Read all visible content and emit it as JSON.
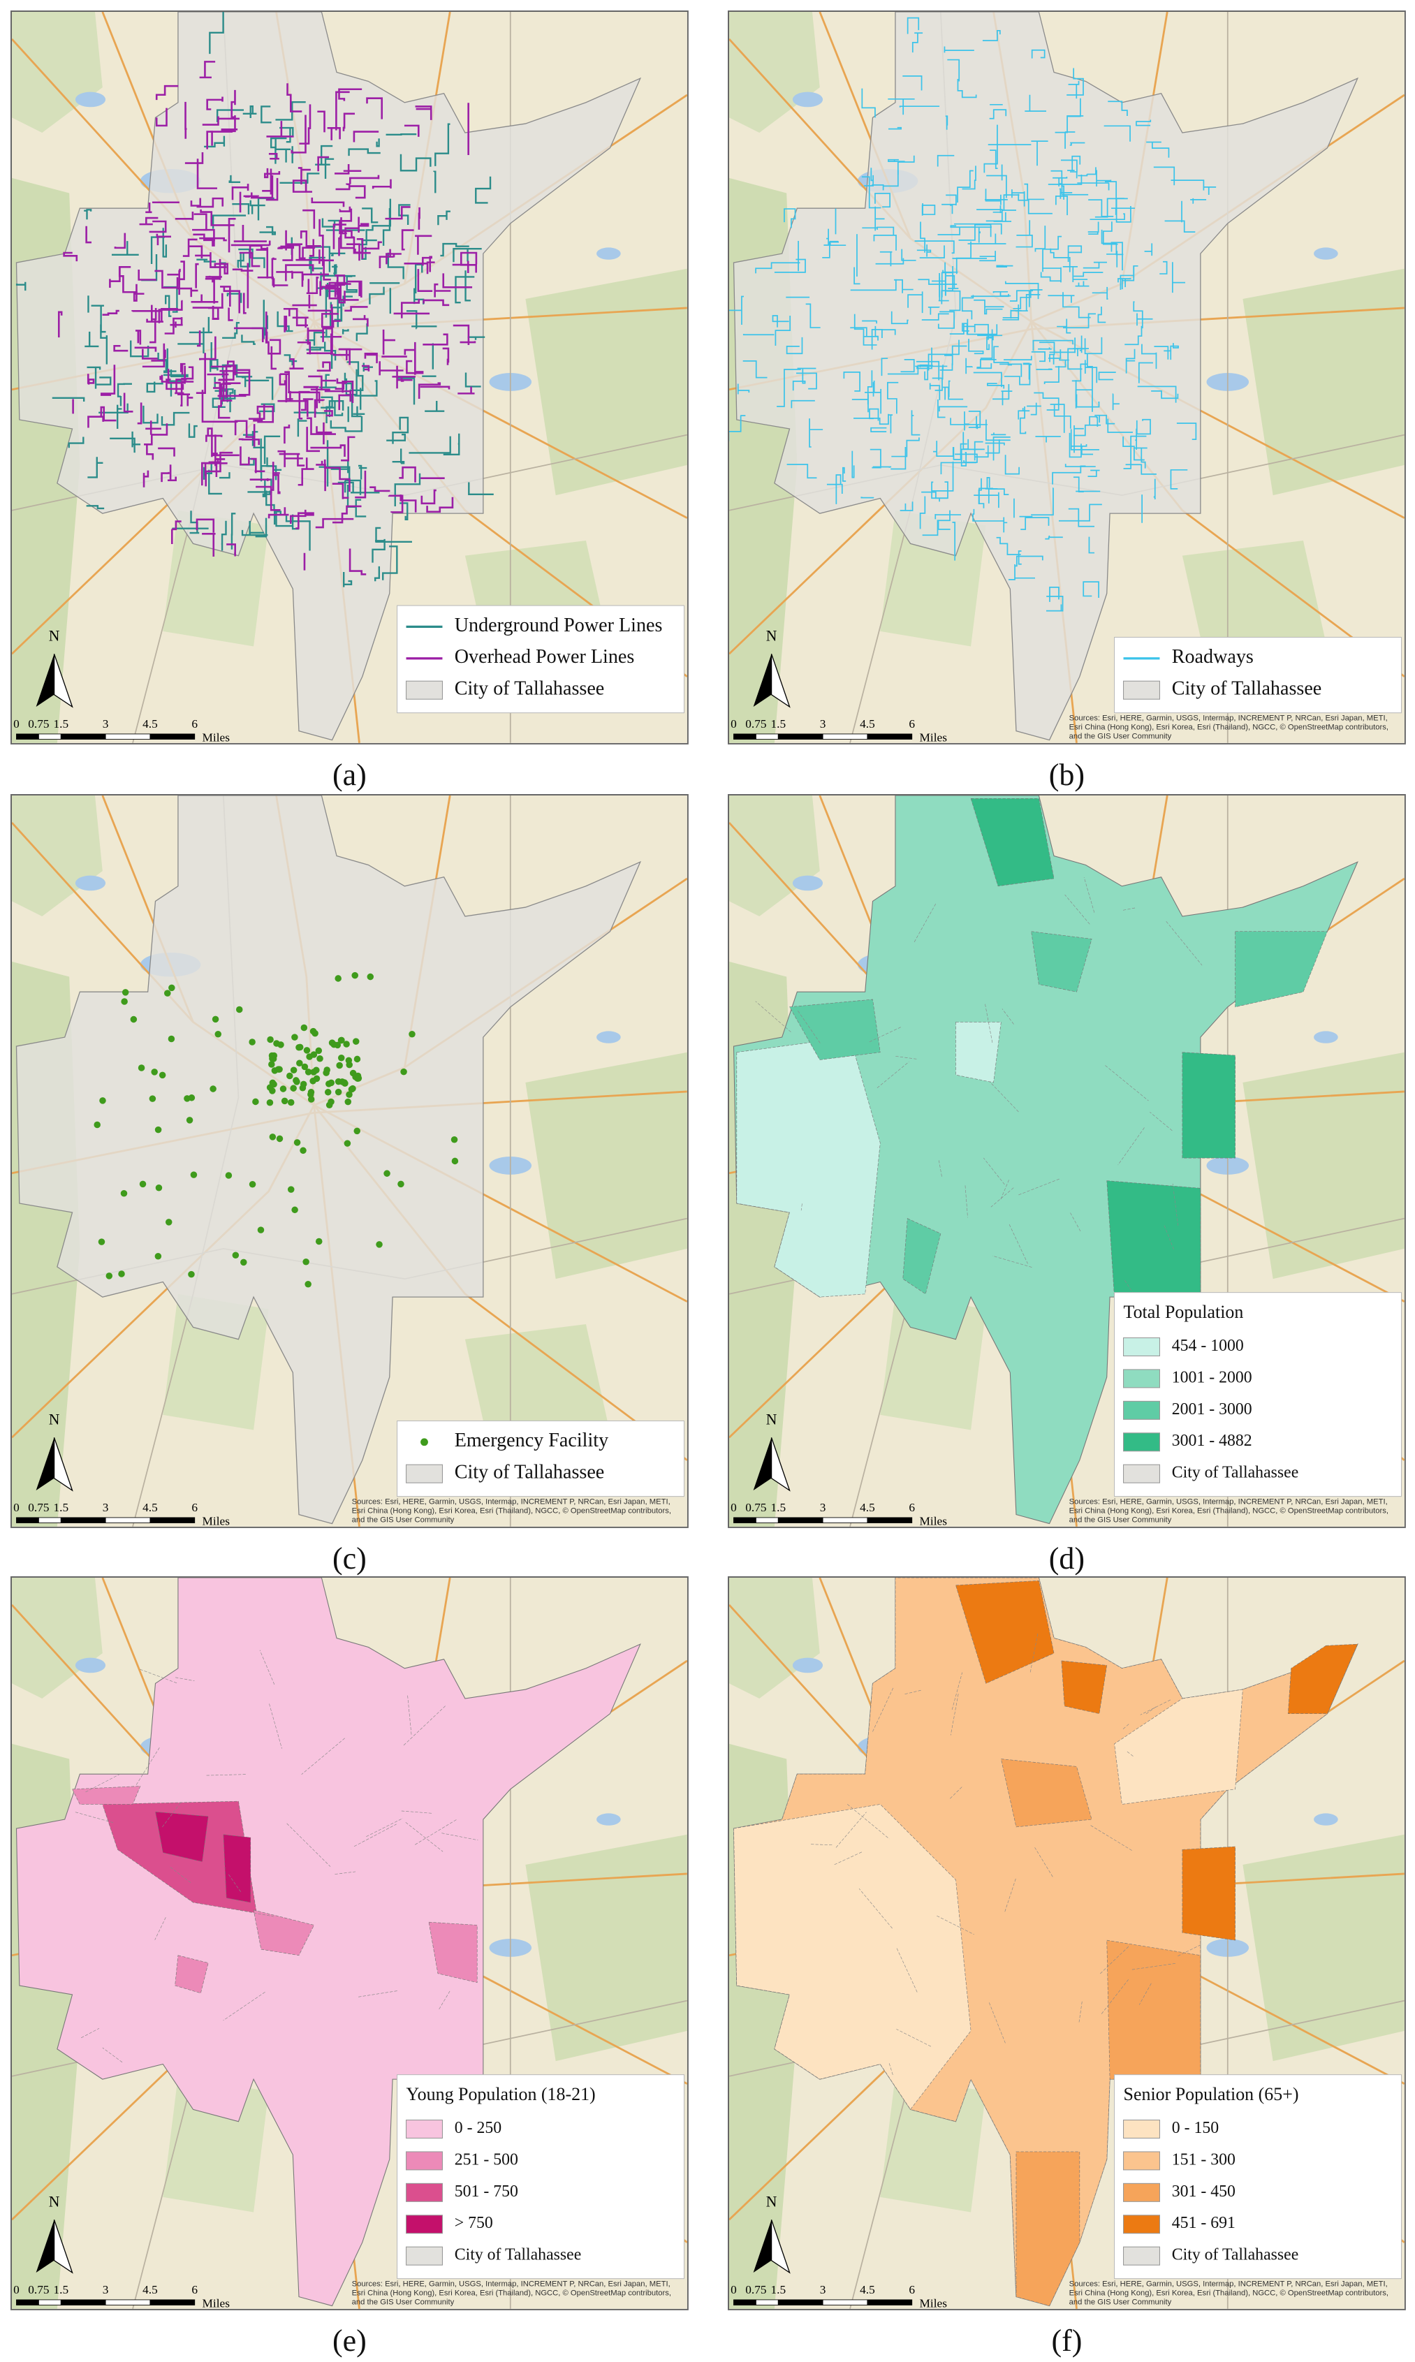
{
  "north": "N",
  "scale_bar": {
    "ticks": [
      0,
      0.75,
      1.5,
      3,
      4.5,
      6
    ],
    "unit": "Miles"
  },
  "attribution": "Sources: Esri, HERE, Garmin, USGS, Intermap, INCREMENT P, NRCan, Esri Japan, METI, Esri China (Hong Kong), Esri Korea, Esri (Thailand), NGCC, © OpenStreetMap contributors, and the GIS User Community",
  "panels": [
    {
      "label": "(a)",
      "map": "power-lines",
      "attribution": false,
      "legend": {
        "items": [
          {
            "label": "Underground Power Lines",
            "symbol": "line",
            "color": "#2b8c8a"
          },
          {
            "label": "Overhead Power Lines",
            "symbol": "line",
            "color": "#9c1fa6"
          },
          {
            "label": "City of Tallahassee",
            "symbol": "box",
            "color": "#e2e1dd"
          }
        ]
      }
    },
    {
      "label": "(b)",
      "map": "roads",
      "attribution": true,
      "legend": {
        "items": [
          {
            "label": "Roadways",
            "symbol": "line",
            "color": "#3cc3ea"
          },
          {
            "label": "City of Tallahassee",
            "symbol": "box",
            "color": "#e2e1dd"
          }
        ]
      }
    },
    {
      "label": "(c)",
      "map": "points",
      "attribution": true,
      "legend": {
        "items": [
          {
            "label": "Emergency Facility",
            "symbol": "dot",
            "color": "#3f9b1c"
          },
          {
            "label": "City of Tallahassee",
            "symbol": "box",
            "color": "#e2e1dd"
          }
        ]
      }
    },
    {
      "label": "(d)",
      "map": "choropleth",
      "attribution": true,
      "legend": {
        "title": "Total Population",
        "items": [
          {
            "label": "454 - 1000",
            "symbol": "box",
            "color": "#c8f1e6"
          },
          {
            "label": "1001 - 2000",
            "symbol": "box",
            "color": "#8fdcc0"
          },
          {
            "label": "2001 - 3000",
            "symbol": "box",
            "color": "#5fcca5"
          },
          {
            "label": "3001 - 4882",
            "symbol": "box",
            "color": "#33bb86"
          },
          {
            "label": "City of Tallahassee",
            "symbol": "box",
            "color": "#e2e1dd"
          }
        ]
      }
    },
    {
      "label": "(e)",
      "map": "choropleth",
      "attribution": true,
      "legend": {
        "title": "Young Population (18-21)",
        "items": [
          {
            "label": "0 - 250",
            "symbol": "box",
            "color": "#f8c4df"
          },
          {
            "label": "251 - 500",
            "symbol": "box",
            "color": "#ec8ab8"
          },
          {
            "label": "501 - 750",
            "symbol": "box",
            "color": "#db4f8e"
          },
          {
            "label": "> 750",
            "symbol": "box",
            "color": "#c4106b"
          },
          {
            "label": "City of Tallahassee",
            "symbol": "box",
            "color": "#e2e1dd"
          }
        ]
      }
    },
    {
      "label": "(f)",
      "map": "choropleth",
      "attribution": true,
      "legend": {
        "title": "Senior Population (65+)",
        "items": [
          {
            "label": "0 - 150",
            "symbol": "box",
            "color": "#fde3c1"
          },
          {
            "label": "151 - 300",
            "symbol": "box",
            "color": "#fbc48e"
          },
          {
            "label": "301 - 450",
            "symbol": "box",
            "color": "#f6a45a"
          },
          {
            "label": "451 - 691",
            "symbol": "box",
            "color": "#ec7a12"
          },
          {
            "label": "City of Tallahassee",
            "symbol": "box",
            "color": "#e2e1dd"
          }
        ]
      }
    }
  ]
}
